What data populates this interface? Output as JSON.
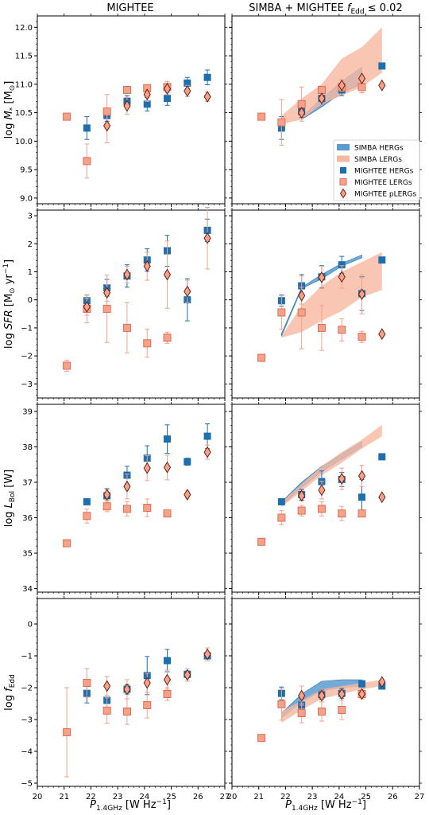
{
  "figure": {
    "col_titles": [
      "MIGHTEE",
      "SIMBA + MIGHTEE f_Edd ≤ 0.02"
    ],
    "xlabel": "P_1.4GHz [W Hz^-1]",
    "xlim": [
      20,
      27
    ],
    "xticks": [
      20,
      21,
      22,
      23,
      24,
      25,
      26,
      27
    ],
    "colors": {
      "herg": "#1f6fae",
      "lerg": "#f4a28a",
      "lerg_edge": "#e26d55",
      "plerg": "#f4a28a",
      "plerg_edge": "#6b1f12",
      "simba_herg": "#5a9bd0",
      "simba_lerg": "#f7b8a0"
    },
    "legend": {
      "entries": [
        "SIMBA HERGs",
        "SIMBA LERGs",
        "MIGHTEE HERGs",
        "MIGHTEE LERGs",
        "MIGHTEE pLERGs"
      ],
      "placement": "lower-right of row 1, right panel"
    }
  },
  "chart_data": [
    {
      "type": "scatter",
      "row": 0,
      "col": 0,
      "ylabel": "log M* [M☉]",
      "ylim": [
        8.9,
        12.2
      ],
      "yticks": [
        9.0,
        9.5,
        10.0,
        10.5,
        11.0,
        11.5,
        12.0
      ],
      "ytick_labels": [
        "9.0",
        "9.5",
        "10.0",
        "10.5",
        "11.0",
        "11.5",
        "12.0"
      ],
      "series": [
        {
          "name": "MIGHTEE HERGs",
          "x": [
            21.85,
            22.6,
            23.35,
            24.1,
            24.85,
            25.6,
            26.35
          ],
          "y": [
            10.23,
            10.45,
            10.7,
            10.65,
            10.75,
            11.02,
            11.12
          ],
          "err": [
            0.2,
            0.1,
            0.1,
            0.12,
            0.12,
            0.1,
            0.13
          ]
        },
        {
          "name": "MIGHTEE LERGs",
          "x": [
            21.1,
            21.85,
            22.6,
            23.35,
            24.1,
            24.85
          ],
          "y": [
            10.43,
            9.65,
            10.52,
            10.9,
            10.93,
            10.95
          ],
          "err": [
            0.05,
            0.3,
            0.3,
            0.05,
            0.05,
            0.1
          ]
        },
        {
          "name": "MIGHTEE pLERGs",
          "x": [
            22.6,
            23.35,
            24.1,
            24.85,
            25.6,
            26.35
          ],
          "y": [
            10.27,
            10.62,
            10.82,
            10.92,
            10.88,
            10.78
          ],
          "err": [
            0.3,
            0.15,
            0.12,
            0.1,
            0.1,
            0.08
          ]
        }
      ]
    },
    {
      "type": "scatter",
      "row": 0,
      "col": 1,
      "ylim": [
        8.9,
        12.2
      ],
      "yticks": [
        9.0,
        9.5,
        10.0,
        10.5,
        11.0,
        11.5,
        12.0
      ],
      "series": [
        {
          "name": "SIMBA HERGs",
          "band_x": [
            22.6,
            23.35,
            24.1,
            24.85
          ],
          "band_lo": [
            10.38,
            10.6,
            10.85,
            11.0
          ],
          "band_hi": [
            10.42,
            10.75,
            11.05,
            11.3
          ]
        },
        {
          "name": "SIMBA LERGs",
          "band_x": [
            21.85,
            22.6,
            23.35,
            24.1,
            24.85,
            25.6
          ],
          "band_lo": [
            10.3,
            10.38,
            10.65,
            10.8,
            10.95,
            11.2
          ],
          "band_hi": [
            10.45,
            10.75,
            11.0,
            11.45,
            11.65,
            12.0
          ]
        },
        {
          "name": "MIGHTEE HERGs",
          "x": [
            21.85,
            22.6,
            23.35,
            24.1,
            24.85,
            25.6
          ],
          "y": [
            10.23,
            10.52,
            10.75,
            10.9,
            10.95,
            11.32
          ],
          "err": [
            0.2,
            0.1,
            0.1,
            0.1,
            0.1,
            0.0
          ]
        },
        {
          "name": "MIGHTEE LERGs",
          "x": [
            21.1,
            21.85,
            22.6,
            23.35,
            24.1,
            24.85
          ],
          "y": [
            10.43,
            10.33,
            10.65,
            10.9,
            10.95,
            10.95
          ],
          "err": [
            0.05,
            0.4,
            0.3,
            0.05,
            0.05,
            0.1
          ]
        },
        {
          "name": "MIGHTEE pLERGs",
          "x": [
            22.6,
            23.35,
            24.1,
            24.85,
            25.6
          ],
          "y": [
            10.5,
            10.75,
            10.98,
            11.1,
            10.98
          ],
          "err": [
            0.1,
            0.1,
            0.1,
            0.05,
            0.0
          ]
        }
      ]
    },
    {
      "type": "scatter",
      "row": 1,
      "col": 0,
      "ylabel": "log SFR [M☉ yr^-1]",
      "ylim": [
        -3.5,
        3.2
      ],
      "yticks": [
        -3,
        -2,
        -1,
        0,
        1,
        2,
        3
      ],
      "ytick_labels": [
        "−3",
        "−2",
        "−1",
        "0",
        "1",
        "2",
        "3"
      ],
      "series": [
        {
          "name": "MIGHTEE HERGs",
          "x": [
            21.85,
            22.6,
            23.35,
            24.1,
            24.85,
            25.6,
            26.35
          ],
          "y": [
            -0.03,
            0.43,
            0.85,
            1.42,
            1.75,
            0.0,
            2.48
          ],
          "err": [
            0.2,
            0.3,
            0.4,
            0.4,
            0.55,
            0.75,
            0.4
          ]
        },
        {
          "name": "MIGHTEE LERGs",
          "x": [
            21.1,
            21.85,
            22.6,
            23.35,
            24.1,
            24.85
          ],
          "y": [
            -2.35,
            -0.32,
            -0.32,
            -1.0,
            -1.55,
            -1.35
          ],
          "err": [
            0.2,
            0.5,
            1.2,
            0.9,
            0.5,
            0.2
          ]
        },
        {
          "name": "MIGHTEE pLERGs",
          "x": [
            21.85,
            22.6,
            23.35,
            24.1,
            24.85,
            25.6,
            26.35
          ],
          "y": [
            -0.25,
            0.25,
            0.9,
            1.2,
            0.9,
            0.3,
            2.2
          ],
          "err": [
            0.3,
            0.3,
            0.3,
            0.5,
            1.2,
            0.4,
            1.1
          ]
        }
      ]
    },
    {
      "type": "scatter",
      "row": 1,
      "col": 1,
      "ylim": [
        -3.5,
        3.2
      ],
      "yticks": [
        -3,
        -2,
        -1,
        0,
        1,
        2,
        3
      ],
      "series": [
        {
          "name": "SIMBA HERGs",
          "band_x": [
            21.85,
            22.6,
            23.35,
            24.1,
            24.85
          ],
          "band_lo": [
            -1.3,
            0.4,
            0.75,
            1.2,
            1.5
          ],
          "band_hi": [
            -1.2,
            0.45,
            0.9,
            1.3,
            1.6
          ]
        },
        {
          "name": "SIMBA LERGs",
          "band_x": [
            21.85,
            22.6,
            23.35,
            24.1,
            24.85,
            25.6
          ],
          "band_lo": [
            -1.35,
            -1.15,
            -0.75,
            -0.4,
            0.1,
            0.35
          ],
          "band_hi": [
            -1.3,
            -0.2,
            0.5,
            1.0,
            1.35,
            1.7
          ]
        },
        {
          "name": "MIGHTEE HERGs",
          "x": [
            21.85,
            22.6,
            23.35,
            24.1,
            24.85,
            25.6
          ],
          "y": [
            -0.03,
            0.5,
            0.82,
            1.25,
            0.22,
            1.42
          ],
          "err": [
            0.2,
            0.4,
            0.4,
            0.3,
            0.6,
            0.0
          ]
        },
        {
          "name": "MIGHTEE LERGs",
          "x": [
            21.1,
            21.85,
            22.6,
            23.35,
            24.1,
            24.85
          ],
          "y": [
            -2.07,
            -0.45,
            -0.45,
            -1.0,
            -1.07,
            -1.32
          ],
          "err": [
            0.05,
            0.6,
            1.3,
            0.8,
            0.4,
            0.2
          ]
        },
        {
          "name": "MIGHTEE pLERGs",
          "x": [
            22.6,
            23.35,
            24.1,
            24.85,
            25.6
          ],
          "y": [
            0.15,
            0.8,
            0.82,
            0.2,
            -1.22
          ],
          "err": [
            0.3,
            0.4,
            0.4,
            0.7,
            0.0
          ]
        }
      ]
    },
    {
      "type": "scatter",
      "row": 2,
      "col": 0,
      "ylabel": "log L_Bol [W]",
      "ylim": [
        33.9,
        39.2
      ],
      "yticks": [
        34,
        35,
        36,
        37,
        38,
        39
      ],
      "ytick_labels": [
        "34",
        "35",
        "36",
        "37",
        "38",
        "39"
      ],
      "series": [
        {
          "name": "MIGHTEE HERGs",
          "x": [
            21.85,
            22.6,
            23.35,
            24.1,
            24.85,
            25.6,
            26.35
          ],
          "y": [
            36.45,
            36.62,
            37.2,
            37.68,
            38.22,
            37.58,
            38.3
          ],
          "err": [
            0.05,
            0.2,
            0.25,
            0.35,
            0.4,
            0.1,
            0.35
          ]
        },
        {
          "name": "MIGHTEE LERGs",
          "x": [
            21.1,
            21.85,
            22.6,
            23.35,
            24.1,
            24.85
          ],
          "y": [
            35.28,
            36.05,
            36.32,
            36.25,
            36.28,
            36.12
          ],
          "err": [
            0.05,
            0.2,
            0.15,
            0.2,
            0.25,
            0.05
          ]
        },
        {
          "name": "MIGHTEE pLERGs",
          "x": [
            22.6,
            23.35,
            24.1,
            24.85,
            25.6,
            26.35
          ],
          "y": [
            36.65,
            36.88,
            37.4,
            37.42,
            36.65,
            37.85
          ],
          "err": [
            0.15,
            0.35,
            0.35,
            0.35,
            0.1,
            0.2
          ]
        }
      ]
    },
    {
      "type": "scatter",
      "row": 2,
      "col": 1,
      "ylim": [
        33.9,
        39.2
      ],
      "yticks": [
        34,
        35,
        36,
        37,
        38,
        39
      ],
      "series": [
        {
          "name": "SIMBA HERGs",
          "band_x": [
            21.85,
            22.6,
            23.35,
            24.1,
            24.85
          ],
          "band_lo": [
            36.35,
            36.85,
            37.3,
            37.65,
            38.0
          ],
          "band_hi": [
            36.45,
            37.0,
            37.45,
            37.8,
            38.15
          ]
        },
        {
          "name": "SIMBA LERGs",
          "band_x": [
            21.85,
            22.6,
            23.35,
            24.1,
            24.85,
            25.6
          ],
          "band_lo": [
            36.3,
            36.75,
            37.2,
            37.55,
            37.95,
            38.3
          ],
          "band_hi": [
            36.45,
            36.95,
            37.45,
            37.85,
            38.2,
            38.62
          ]
        },
        {
          "name": "MIGHTEE HERGs",
          "x": [
            21.85,
            22.6,
            23.35,
            24.1,
            24.85,
            25.6
          ],
          "y": [
            36.45,
            36.65,
            37.02,
            37.08,
            36.58,
            37.72
          ],
          "err": [
            0.05,
            0.15,
            0.3,
            0.2,
            0.5,
            0.0
          ]
        },
        {
          "name": "MIGHTEE LERGs",
          "x": [
            21.1,
            21.85,
            22.6,
            23.35,
            24.1,
            24.85
          ],
          "y": [
            35.32,
            36.0,
            36.2,
            36.25,
            36.12,
            36.12
          ],
          "err": [
            0.05,
            0.2,
            0.15,
            0.2,
            0.2,
            0.05
          ]
        },
        {
          "name": "MIGHTEE pLERGs",
          "x": [
            22.6,
            23.35,
            24.1,
            24.85,
            25.6
          ],
          "y": [
            36.62,
            36.78,
            37.1,
            37.18,
            36.58
          ],
          "err": [
            0.15,
            0.25,
            0.3,
            0.3,
            0.0
          ]
        }
      ]
    },
    {
      "type": "scatter",
      "row": 3,
      "col": 0,
      "ylabel": "log f_Edd",
      "ylim": [
        -5.1,
        0.8
      ],
      "yticks": [
        -5,
        -4,
        -3,
        -2,
        -1,
        0
      ],
      "ytick_labels": [
        "−5",
        "−4",
        "−3",
        "−2",
        "−1",
        "0"
      ],
      "series": [
        {
          "name": "MIGHTEE HERGs",
          "x": [
            21.85,
            22.6,
            23.35,
            24.1,
            24.85,
            25.6,
            26.35
          ],
          "y": [
            -2.18,
            -2.4,
            -2.05,
            -1.62,
            -1.15,
            -1.58,
            -1.0
          ],
          "err": [
            0.3,
            0.1,
            0.15,
            0.6,
            0.35,
            0.1,
            0.1
          ]
        },
        {
          "name": "MIGHTEE LERGs",
          "x": [
            21.1,
            21.85,
            22.6,
            23.35,
            24.1,
            24.85
          ],
          "y": [
            -3.4,
            -1.85,
            -2.72,
            -2.75,
            -2.55,
            -2.2
          ],
          "err": [
            1.4,
            0.45,
            0.4,
            0.4,
            0.4,
            0.2
          ]
        },
        {
          "name": "MIGHTEE pLERGs",
          "x": [
            22.6,
            23.35,
            24.1,
            24.85,
            25.6,
            26.35
          ],
          "y": [
            -1.95,
            -2.05,
            -1.85,
            -1.75,
            -1.6,
            -0.95
          ],
          "err": [
            0.3,
            0.3,
            0.3,
            0.3,
            0.2,
            0.2
          ]
        }
      ]
    },
    {
      "type": "scatter",
      "row": 3,
      "col": 1,
      "ylim": [
        -5.1,
        0.8
      ],
      "yticks": [
        -5,
        -4,
        -3,
        -2,
        -1,
        0
      ],
      "series": [
        {
          "name": "SIMBA HERGs",
          "band_x": [
            21.85,
            22.6,
            23.35,
            24.1,
            24.85
          ],
          "band_lo": [
            -2.95,
            -2.45,
            -2.1,
            -2.0,
            -1.95
          ],
          "band_hi": [
            -2.8,
            -2.2,
            -1.8,
            -1.75,
            -1.75
          ]
        },
        {
          "name": "SIMBA LERGs",
          "band_x": [
            21.85,
            22.6,
            23.35,
            24.1,
            24.85,
            25.6
          ],
          "band_lo": [
            -3.1,
            -2.7,
            -2.35,
            -2.2,
            -2.05,
            -1.95
          ],
          "band_hi": [
            -2.75,
            -2.4,
            -2.05,
            -1.95,
            -1.85,
            -1.75
          ]
        },
        {
          "name": "MIGHTEE HERGs",
          "x": [
            21.85,
            22.6,
            23.35,
            24.1,
            24.85,
            25.6
          ],
          "y": [
            -2.18,
            -2.55,
            -2.22,
            -2.18,
            -1.88,
            -1.95
          ],
          "err": [
            0.2,
            0.2,
            0.15,
            0.15,
            0.1,
            0.0
          ]
        },
        {
          "name": "MIGHTEE LERGs",
          "x": [
            21.1,
            21.85,
            22.6,
            23.35,
            24.1,
            24.85
          ],
          "y": [
            -3.58,
            -2.52,
            -2.8,
            -2.75,
            -2.7,
            -2.2
          ],
          "err": [
            0.05,
            0.5,
            0.3,
            0.3,
            0.3,
            0.1
          ]
        },
        {
          "name": "MIGHTEE pLERGs",
          "x": [
            22.6,
            23.35,
            24.1,
            24.85,
            25.6
          ],
          "y": [
            -2.25,
            -2.25,
            -2.2,
            -2.2,
            -1.82
          ],
          "err": [
            0.3,
            0.2,
            0.2,
            0.15,
            0.0
          ]
        }
      ]
    }
  ]
}
